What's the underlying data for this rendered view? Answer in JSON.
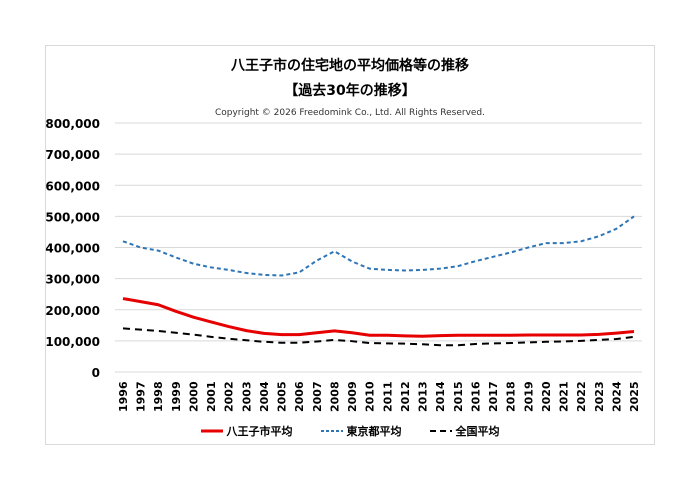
{
  "chart_data": {
    "type": "line",
    "title": "八王子市の住宅地の平均価格等の推移",
    "subtitle": "【過去30年の推移】",
    "copyright": "Copyright © 2026 Freedomink Co., Ltd. All Rights Reserved.",
    "xlabel": "",
    "ylabel": "",
    "ylim": [
      0,
      800000
    ],
    "yticks": [
      "0",
      "100,000",
      "200,000",
      "300,000",
      "400,000",
      "500,000",
      "600,000",
      "700,000",
      "800,000"
    ],
    "grid": true,
    "legend_position": "bottom",
    "x": [
      "1996",
      "1997",
      "1998",
      "1999",
      "2000",
      "2001",
      "2002",
      "2003",
      "2004",
      "2005",
      "2006",
      "2007",
      "2008",
      "2009",
      "2010",
      "2011",
      "2012",
      "2013",
      "2014",
      "2015",
      "2016",
      "2017",
      "2018",
      "2019",
      "2020",
      "2021",
      "2022",
      "2023",
      "2024",
      "2025"
    ],
    "series": [
      {
        "name": "八王子市平均",
        "color": "#e60000",
        "style": "solid",
        "values": [
          236000,
          226000,
          216000,
          195000,
          176000,
          161000,
          146000,
          133000,
          124000,
          120000,
          120000,
          126000,
          132000,
          126000,
          118000,
          118000,
          116000,
          115000,
          117000,
          118000,
          118000,
          118000,
          118000,
          119000,
          119000,
          119000,
          119000,
          121000,
          125000,
          130000
        ]
      },
      {
        "name": "東京都平均",
        "color": "#2e75b6",
        "style": "dotted",
        "values": [
          420000,
          400000,
          390000,
          368000,
          348000,
          336000,
          328000,
          318000,
          312000,
          310000,
          320000,
          358000,
          388000,
          355000,
          332000,
          328000,
          326000,
          328000,
          332000,
          340000,
          356000,
          370000,
          384000,
          400000,
          414000,
          414000,
          420000,
          436000,
          460000,
          500000
        ]
      },
      {
        "name": "全国平均",
        "color": "#000000",
        "style": "dashed",
        "values": [
          140000,
          136000,
          132000,
          126000,
          120000,
          113000,
          107000,
          102000,
          97000,
          94000,
          94000,
          98000,
          103000,
          99000,
          93000,
          92000,
          91000,
          89000,
          86000,
          86000,
          90000,
          92000,
          93000,
          95000,
          97000,
          98000,
          100000,
          103000,
          106000,
          113000
        ]
      }
    ]
  }
}
